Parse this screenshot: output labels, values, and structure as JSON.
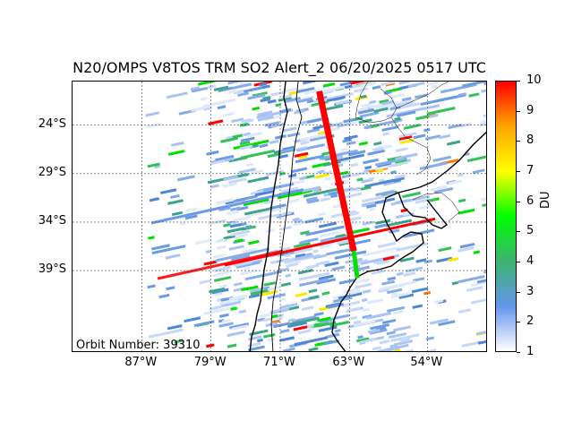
{
  "title": "N20/OMPS V8TOS TRM SO2 Alert_2 06/20/2025 0517 UTC",
  "orbit_label": "Orbit Number: 39310",
  "colorbar": {
    "unit": "DU",
    "min": 1,
    "max": 10,
    "tick_labels": [
      "1",
      "2",
      "3",
      "4",
      "5",
      "6",
      "7",
      "8",
      "9",
      "10"
    ],
    "colors": [
      "#ffffff",
      "#6495ed",
      "#3cb371",
      "#00ff00",
      "#ffff00",
      "#ffa500",
      "#ff0000"
    ]
  },
  "map": {
    "lat_labels": [
      "24°S",
      "29°S",
      "34°S",
      "39°S"
    ],
    "lon_labels": [
      "87°W",
      "79°W",
      "71°W",
      "63°W",
      "54°W"
    ],
    "lat_values": [
      -24,
      -29,
      -34,
      -39
    ],
    "lon_values": [
      -87,
      -79,
      -71,
      -63,
      -54
    ],
    "extent": {
      "lon_min": -95,
      "lon_max": -47,
      "lat_min": -47.5,
      "lat_max": -19.5
    },
    "plume": {
      "lat_start": -20.5,
      "lat_end": -37,
      "lon_start": -66.5,
      "lon_end": -62.5,
      "value_du": 10
    }
  }
}
